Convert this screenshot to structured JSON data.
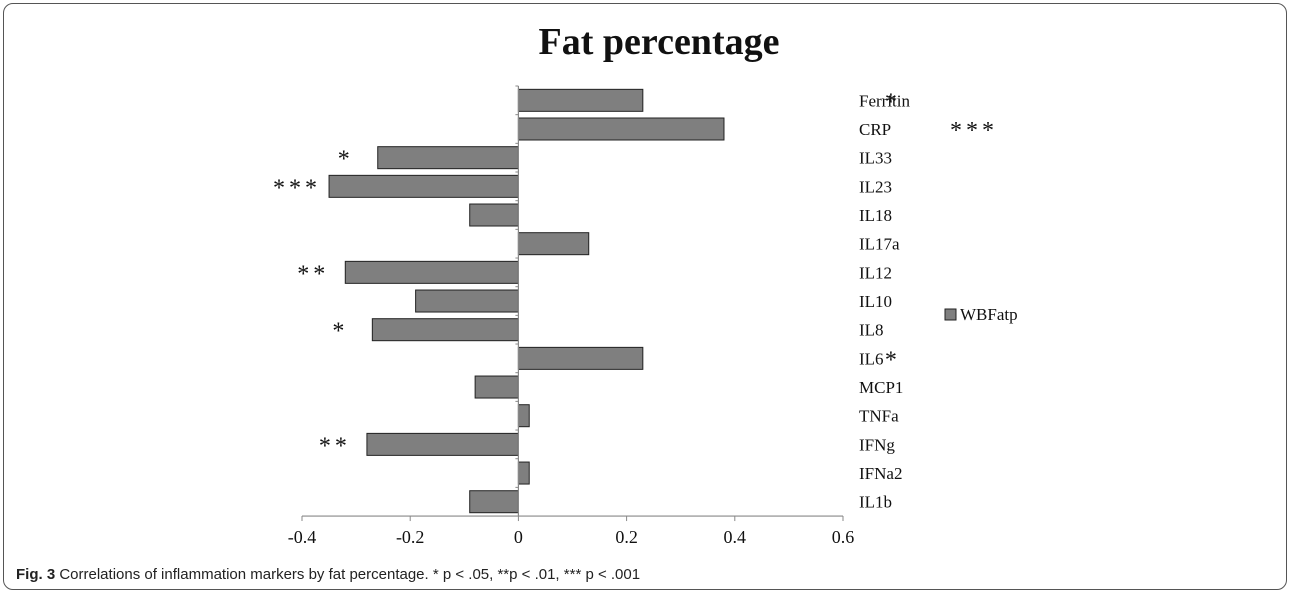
{
  "chart_data": {
    "type": "bar",
    "orientation": "horizontal",
    "title": "Fat percentage",
    "categories": [
      "Ferritin",
      "CRP",
      "IL33",
      "IL23",
      "IL18",
      "IL17a",
      "IL12",
      "IL10",
      "IL8",
      "IL6",
      "MCP1",
      "TNFa",
      "IFNg",
      "IFNa2",
      "IL1b"
    ],
    "series": [
      {
        "name": "WBFatp",
        "values": [
          0.23,
          0.38,
          -0.26,
          -0.35,
          -0.09,
          0.13,
          -0.32,
          -0.19,
          -0.27,
          0.23,
          -0.08,
          0.02,
          -0.28,
          0.02,
          -0.09
        ]
      }
    ],
    "significance": [
      "*",
      "***",
      "*",
      "***",
      "",
      "",
      "**",
      "",
      "*",
      "*",
      "",
      "",
      "**",
      "",
      ""
    ],
    "xlim": [
      -0.4,
      0.6
    ],
    "xticks": [
      "-0.4",
      "-0.2",
      "0",
      "0.2",
      "0.4",
      "0.6"
    ],
    "xlabel": "",
    "ylabel": "",
    "grid": false,
    "legend": "right",
    "bar_color": "#7f7f7f"
  },
  "caption": {
    "label": "Fig. 3",
    "text": "Correlations of inflammation markers by fat percentage. * p < .05, **p < .01, *** p < .001"
  }
}
